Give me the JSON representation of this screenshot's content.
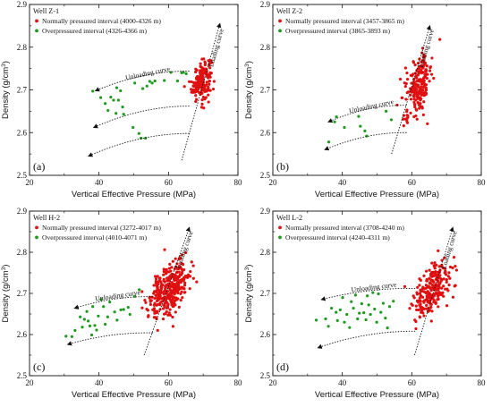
{
  "chart_data": [
    {
      "type": "scatter",
      "panel_label": "(a)",
      "well": "Well Z-1",
      "xlabel": "Vertical Effective Pressure (MPa)",
      "ylabel_main": "Density (g/cm",
      "ylabel_sup": "3",
      "ylabel_close": ")",
      "xlim": [
        20,
        80
      ],
      "ylim": [
        2.5,
        2.9
      ],
      "xticks": [
        "20",
        "40",
        "60",
        "80"
      ],
      "yticks": [
        "2.5",
        "2.6",
        "2.7",
        "2.8",
        "2.9"
      ],
      "curve_labels": {
        "unloading": "Unloading curve",
        "loading": "Loading curve"
      },
      "series": [
        {
          "name": "Normally pressured interval (4000-4326 m)",
          "color": "#e01010",
          "cluster": {
            "cx": 69.5,
            "cy": 2.722,
            "sx": 1.4,
            "sy": 0.022,
            "n": 170,
            "slope": 0.0045
          }
        },
        {
          "name": "Overpressured interval (4326-4366 m)",
          "color": "#1e9a1e",
          "points": [
            [
              38.2,
              2.697
            ],
            [
              40.5,
              2.682
            ],
            [
              41.8,
              2.668
            ],
            [
              42.6,
              2.652
            ],
            [
              43.4,
              2.683
            ],
            [
              44.2,
              2.676
            ],
            [
              45.1,
              2.705
            ],
            [
              45.6,
              2.676
            ],
            [
              46.2,
              2.698
            ],
            [
              46.8,
              2.66
            ],
            [
              44.9,
              2.645
            ],
            [
              47.1,
              2.643
            ],
            [
              49.8,
              2.612
            ],
            [
              51.5,
              2.598
            ],
            [
              52.1,
              2.587
            ],
            [
              53.4,
              2.587
            ],
            [
              50.3,
              2.716
            ],
            [
              52.6,
              2.703
            ],
            [
              53.8,
              2.709
            ],
            [
              54.6,
              2.72
            ],
            [
              55.3,
              2.716
            ],
            [
              56.1,
              2.721
            ],
            [
              58.8,
              2.722
            ],
            [
              60.7,
              2.741
            ],
            [
              62.6,
              2.721
            ],
            [
              63.8,
              2.74
            ],
            [
              64.3,
              2.741
            ],
            [
              65.1,
              2.738
            ]
          ]
        }
      ],
      "curves": {
        "loading": [
          [
            63.8,
            2.535
          ],
          [
            74.8,
            2.855
          ]
        ],
        "unloading": [
          [
            [
              66,
              2.744
            ],
            [
              39,
              2.698
            ]
          ],
          [
            [
              66,
              2.662
            ],
            [
              38.5,
              2.612
            ]
          ],
          [
            [
              66,
              2.598
            ],
            [
              37,
              2.545
            ]
          ]
        ]
      }
    },
    {
      "type": "scatter",
      "panel_label": "(b)",
      "well": "Well Z-2",
      "xlabel": "Vertical Effective Pressure (MPa)",
      "ylabel_main": "Density (g/cm",
      "ylabel_sup": "3",
      "ylabel_close": ")",
      "xlim": [
        20,
        80
      ],
      "ylim": [
        2.5,
        2.9
      ],
      "xticks": [
        "20",
        "40",
        "60",
        "80"
      ],
      "yticks": [
        "2.5",
        "2.6",
        "2.7",
        "2.8",
        "2.9"
      ],
      "curve_labels": {
        "unloading": "Unloading curve",
        "loading": "Loading curve"
      },
      "series": [
        {
          "name": "Normally pressured interval (3457-3865 m)",
          "color": "#e01010",
          "cluster": {
            "cx": 62,
            "cy": 2.713,
            "sx": 2.0,
            "sy": 0.032,
            "n": 200,
            "slope": 0.0085
          }
        },
        {
          "name": "Overpressured interval (3865-3893 m)",
          "color": "#1e9a1e",
          "points": [
            [
              36.1,
              2.578
            ],
            [
              37.8,
              2.625
            ],
            [
              38.3,
              2.637
            ],
            [
              40.6,
              2.612
            ],
            [
              44.7,
              2.638
            ],
            [
              45.2,
              2.615
            ],
            [
              46.5,
              2.604
            ],
            [
              47.0,
              2.592
            ],
            [
              52.6,
              2.65
            ],
            [
              54.1,
              2.63
            ]
          ]
        }
      ],
      "curves": {
        "loading": [
          [
            54.2,
            2.55
          ],
          [
            65.2,
            2.85
          ]
        ],
        "unloading": [
          [
            [
              58.5,
              2.664
            ],
            [
              36,
              2.625
            ]
          ],
          [
            [
              58.5,
              2.6
            ],
            [
              35,
              2.56
            ]
          ]
        ]
      }
    },
    {
      "type": "scatter",
      "panel_label": "(c)",
      "well": "Well H-2",
      "xlabel": "Vertical Effective Pressure (MPa)",
      "ylabel_main": "Density (g/cm",
      "ylabel_sup": "3",
      "ylabel_close": ")",
      "xlim": [
        20,
        80
      ],
      "ylim": [
        2.5,
        2.9
      ],
      "xticks": [
        "20",
        "40",
        "60",
        "80"
      ],
      "yticks": [
        "2.5",
        "2.6",
        "2.7",
        "2.8",
        "2.9"
      ],
      "curve_labels": {
        "unloading": "Unloading curve",
        "loading": "Loading curve"
      },
      "series": [
        {
          "name": "Normally pressured interval (3272-4017 m)",
          "color": "#e01010",
          "cluster": {
            "cx": 60.5,
            "cy": 2.712,
            "sx": 3.0,
            "sy": 0.03,
            "n": 330,
            "slope": 0.006
          }
        },
        {
          "name": "Overpressured interval (4010-4071 m)",
          "color": "#1e9a1e",
          "points": [
            [
              30.5,
              2.596
            ],
            [
              32.2,
              2.595
            ],
            [
              33.1,
              2.61
            ],
            [
              34.6,
              2.643
            ],
            [
              35.2,
              2.618
            ],
            [
              35.8,
              2.637
            ],
            [
              36.5,
              2.656
            ],
            [
              36.9,
              2.633
            ],
            [
              37.4,
              2.621
            ],
            [
              37.9,
              2.599
            ],
            [
              38.2,
              2.668
            ],
            [
              38.8,
              2.622
            ],
            [
              39.3,
              2.611
            ],
            [
              39.8,
              2.645
            ],
            [
              40.6,
              2.685
            ],
            [
              41.3,
              2.668
            ],
            [
              41.8,
              2.625
            ],
            [
              42.5,
              2.643
            ],
            [
              43.1,
              2.679
            ],
            [
              44.5,
              2.655
            ],
            [
              45.2,
              2.635
            ],
            [
              46.3,
              2.66
            ],
            [
              47.1,
              2.661
            ],
            [
              48.4,
              2.666
            ],
            [
              48.9,
              2.649
            ],
            [
              50.3,
              2.693
            ],
            [
              51.6,
              2.709
            ]
          ]
        }
      ],
      "curves": {
        "loading": [
          [
            53,
            2.55
          ],
          [
            66,
            2.86
          ]
        ],
        "unloading": [
          [
            [
              55.5,
              2.692
            ],
            [
              33,
              2.664
            ]
          ],
          [
            [
              55.5,
              2.604
            ],
            [
              31,
              2.576
            ]
          ]
        ]
      }
    },
    {
      "type": "scatter",
      "panel_label": "(d)",
      "well": "Well L-2",
      "xlabel": "Vertical Effective Pressure (MPa)",
      "ylabel_main": "Density (g/cm",
      "ylabel_sup": "3",
      "ylabel_close": ")",
      "xlim": [
        20,
        80
      ],
      "ylim": [
        2.5,
        2.9
      ],
      "xticks": [
        "20",
        "40",
        "60",
        "80"
      ],
      "yticks": [
        "2.5",
        "2.6",
        "2.7",
        "2.8",
        "2.9"
      ],
      "curve_labels": {
        "unloading": "Unloading curve",
        "loading": "Loading curve"
      },
      "series": [
        {
          "name": "Normally pressured interval (3708-4240 m)",
          "color": "#e01010",
          "cluster": {
            "cx": 66,
            "cy": 2.712,
            "sx": 2.8,
            "sy": 0.03,
            "n": 240,
            "slope": 0.0075
          }
        },
        {
          "name": "Overpressured interval (4240-4311 m)",
          "color": "#1e9a1e",
          "points": [
            [
              32.5,
              2.635
            ],
            [
              35.2,
              2.638
            ],
            [
              36.0,
              2.62
            ],
            [
              36.9,
              2.664
            ],
            [
              38.2,
              2.654
            ],
            [
              38.6,
              2.634
            ],
            [
              39.4,
              2.66
            ],
            [
              40.1,
              2.69
            ],
            [
              40.6,
              2.63
            ],
            [
              41.3,
              2.649
            ],
            [
              42.1,
              2.617
            ],
            [
              42.6,
              2.68
            ],
            [
              43.2,
              2.664
            ],
            [
              43.8,
              2.696
            ],
            [
              44.4,
              2.638
            ],
            [
              44.9,
              2.652
            ],
            [
              45.6,
              2.675
            ],
            [
              46.2,
              2.653
            ],
            [
              46.8,
              2.636
            ],
            [
              47.2,
              2.694
            ],
            [
              47.6,
              2.672
            ],
            [
              48.1,
              2.649
            ],
            [
              48.8,
              2.702
            ],
            [
              49.3,
              2.662
            ],
            [
              49.9,
              2.63
            ],
            [
              50.4,
              2.699
            ],
            [
              51.1,
              2.654
            ],
            [
              51.8,
              2.676
            ],
            [
              52.4,
              2.64
            ],
            [
              53.0,
              2.616
            ],
            [
              53.6,
              2.668
            ],
            [
              54.7,
              2.681
            ]
          ]
        }
      ],
      "curves": {
        "loading": [
          [
            60.8,
            2.55
          ],
          [
            71.8,
            2.86
          ]
        ],
        "unloading": [
          [
            [
              61,
              2.712
            ],
            [
              34,
              2.685
            ]
          ],
          [
            [
              61,
              2.608
            ],
            [
              33,
              2.568
            ]
          ]
        ]
      }
    }
  ]
}
